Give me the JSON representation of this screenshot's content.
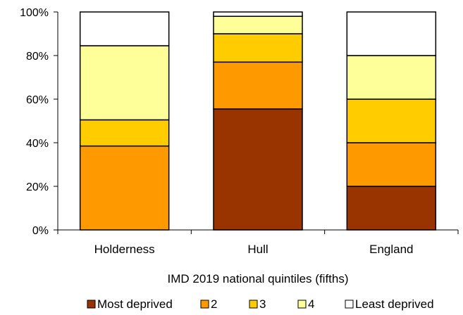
{
  "chart_data": {
    "type": "bar",
    "stacked": true,
    "percent": true,
    "title": "",
    "xlabel": "IMD 2019 national quintiles (fifths)",
    "ylabel": "",
    "ylim": [
      0,
      100
    ],
    "yticks": [
      "0%",
      "20%",
      "40%",
      "60%",
      "80%",
      "100%"
    ],
    "categories": [
      "Holderness",
      "Hull",
      "England"
    ],
    "grid": false,
    "legend_position": "bottom",
    "series": [
      {
        "name": "Most deprived",
        "color": "#993300",
        "values": [
          0,
          55.5,
          20
        ]
      },
      {
        "name": "2",
        "color": "#ff9900",
        "values": [
          38.5,
          21.5,
          20
        ]
      },
      {
        "name": "3",
        "color": "#ffcc00",
        "values": [
          12,
          13,
          20
        ]
      },
      {
        "name": "4",
        "color": "#ffff99",
        "values": [
          34,
          8,
          20
        ]
      },
      {
        "name": "Least deprived",
        "color": "#ffffff",
        "values": [
          15.5,
          2,
          20
        ]
      }
    ]
  }
}
